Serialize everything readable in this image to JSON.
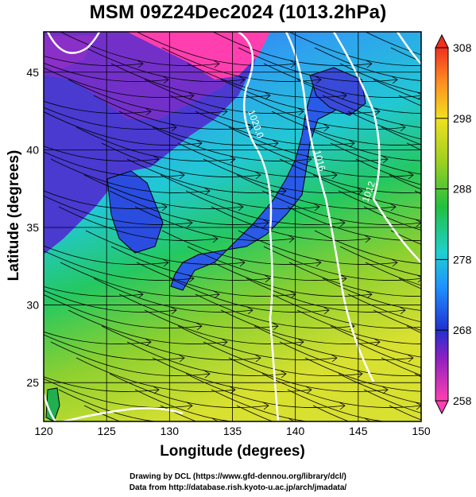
{
  "title": "MSM 09Z24Dec2024 (1013.2hPa)",
  "axes": {
    "xlabel": "Longitude (degrees)",
    "ylabel": "Latitude  (degrees)",
    "xlim": [
      120,
      150
    ],
    "ylim": [
      22.5,
      47.6
    ],
    "xticks": [
      "120",
      "125",
      "130",
      "135",
      "140",
      "145",
      "150"
    ],
    "yticks": [
      "25",
      "30",
      "35",
      "40",
      "45"
    ],
    "grid": true
  },
  "colorbar": {
    "ticks": [
      "308",
      "298",
      "288",
      "278",
      "268",
      "258"
    ],
    "min": 258,
    "max": 308,
    "colors": [
      "#ff40b0",
      "#9020c0",
      "#2030d0",
      "#1e90ff",
      "#20d0d0",
      "#20c040",
      "#a0d020",
      "#f0e020",
      "#ff9020",
      "#f03020"
    ]
  },
  "contours": [
    {
      "label": "1020.0"
    },
    {
      "label": "1016"
    },
    {
      "label": "1012"
    }
  ],
  "credits": {
    "line1": "Drawing by DCL (https://www.gfd-dennou.org/library/dcl/)",
    "line2": "Data from http://database.rish.kyoto-u.ac.jp/arch/jmadata/"
  }
}
